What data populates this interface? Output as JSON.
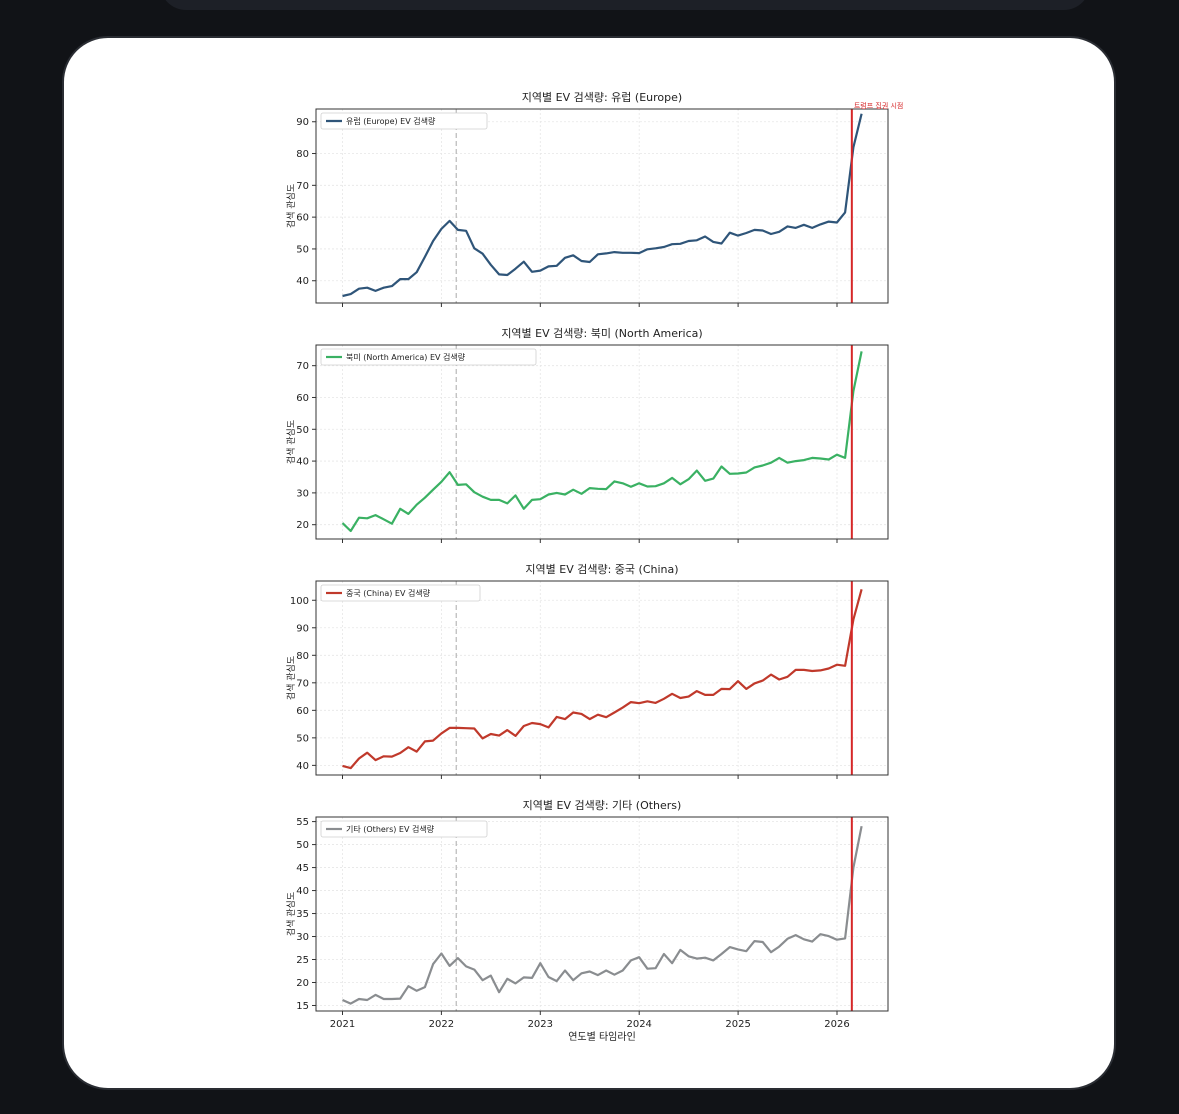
{
  "chart_data": [
    {
      "type": "line",
      "title": "지역별 EV 검색량: 유럽 (Europe)",
      "ylabel": "검색 관심도",
      "xlabel": "",
      "legend": "유럽 (Europe) EV 검색량",
      "legend_position": "top-left",
      "color": "#2f5579",
      "grid": true,
      "ylim": [
        33,
        94
      ],
      "yticks": [
        40,
        50,
        60,
        70,
        80,
        90
      ],
      "marker_label": "트럼프 집권 시점",
      "values": [
        35.2,
        35.8,
        37.5,
        37.8,
        36.8,
        37.8,
        38.3,
        40.5,
        40.5,
        42.7,
        47.5,
        52.5,
        56.3,
        58.8,
        56.0,
        55.7,
        50.2,
        48.5,
        45.0,
        42.0,
        41.8,
        43.8,
        46.0,
        42.8,
        43.2,
        44.5,
        44.7,
        47.2,
        48.0,
        46.2,
        45.9,
        48.3,
        48.6,
        49.0,
        48.8,
        48.8,
        48.7,
        49.9,
        50.2,
        50.6,
        51.5,
        51.6,
        52.5,
        52.7,
        53.9,
        52.2,
        51.7,
        55.1,
        54.2,
        55.0,
        56.0,
        55.8,
        54.7,
        55.4,
        57.1,
        56.6,
        57.6,
        56.6,
        57.7,
        58.6,
        58.3,
        61.5,
        82.0,
        92.5
      ]
    },
    {
      "type": "line",
      "title": "지역별 EV 검색량: 북미 (North America)",
      "ylabel": "검색 관심도",
      "xlabel": "",
      "legend": "북미 (North America) EV 검색량",
      "legend_position": "top-left",
      "color": "#3ab163",
      "grid": true,
      "ylim": [
        15.5,
        76.5
      ],
      "yticks": [
        20,
        30,
        40,
        50,
        60,
        70
      ],
      "values": [
        20.5,
        18.0,
        22.2,
        22.0,
        23.0,
        21.7,
        20.3,
        25.0,
        23.4,
        26.3,
        28.5,
        31.0,
        33.5,
        36.5,
        32.5,
        32.7,
        30.2,
        28.8,
        27.8,
        27.8,
        26.7,
        29.2,
        25.0,
        27.8,
        28.0,
        29.5,
        30.0,
        29.5,
        31.0,
        29.7,
        31.5,
        31.3,
        31.2,
        33.6,
        33.0,
        31.9,
        33.0,
        32.0,
        32.1,
        33.0,
        34.7,
        32.7,
        34.3,
        37.0,
        33.8,
        34.5,
        38.3,
        36.0,
        36.1,
        36.4,
        38.0,
        38.6,
        39.5,
        41.0,
        39.5,
        40.0,
        40.3,
        41.0,
        40.8,
        40.5,
        42.0,
        41.0,
        62.0,
        74.5
      ]
    },
    {
      "type": "line",
      "title": "지역별 EV 검색량: 중국 (China)",
      "ylabel": "검색 관심도",
      "xlabel": "",
      "legend": "중국 (China) EV 검색량",
      "legend_position": "top-left",
      "color": "#c0392b",
      "grid": true,
      "ylim": [
        36.5,
        107
      ],
      "yticks": [
        40,
        50,
        60,
        70,
        80,
        90,
        100
      ],
      "values": [
        39.8,
        39.0,
        42.5,
        44.6,
        41.9,
        43.3,
        43.2,
        44.5,
        46.6,
        45.0,
        48.7,
        49.0,
        51.6,
        53.6,
        53.6,
        53.5,
        53.4,
        49.8,
        51.4,
        50.8,
        52.8,
        50.7,
        54.3,
        55.4,
        55.0,
        53.8,
        57.6,
        56.8,
        59.2,
        58.7,
        56.8,
        58.4,
        57.5,
        59.2,
        61.0,
        63.0,
        62.6,
        63.3,
        62.7,
        64.2,
        66.0,
        64.5,
        65.0,
        67.0,
        65.6,
        65.6,
        67.8,
        67.7,
        70.6,
        67.8,
        69.8,
        70.8,
        73.0,
        71.2,
        72.2,
        74.7,
        74.7,
        74.3,
        74.5,
        75.2,
        76.6,
        76.2,
        93.0,
        104.0
      ]
    },
    {
      "type": "line",
      "title": "지역별 EV 검색량: 기타 (Others)",
      "ylabel": "검색 관심도",
      "xlabel": "연도별 타임라인",
      "legend": "기타 (Others) EV 검색량",
      "legend_position": "top-left",
      "color": "#8a8d90",
      "grid": true,
      "ylim": [
        13.8,
        56
      ],
      "yticks": [
        15,
        20,
        25,
        30,
        35,
        40,
        45,
        50,
        55
      ],
      "xticks": [
        "2021",
        "2022",
        "2023",
        "2024",
        "2025",
        "2026"
      ],
      "values": [
        16.2,
        15.4,
        16.4,
        16.2,
        17.3,
        16.4,
        16.4,
        16.5,
        19.2,
        18.2,
        19.0,
        24.0,
        26.3,
        23.6,
        25.3,
        23.5,
        22.8,
        20.5,
        21.5,
        17.9,
        20.8,
        19.8,
        21.1,
        21.0,
        24.2,
        21.2,
        20.3,
        22.6,
        20.5,
        22.0,
        22.4,
        21.6,
        22.6,
        21.7,
        22.6,
        24.8,
        25.5,
        23.0,
        23.1,
        26.2,
        24.2,
        27.1,
        25.7,
        25.2,
        25.4,
        24.8,
        26.2,
        27.7,
        27.2,
        26.8,
        29.0,
        28.8,
        26.6,
        27.8,
        29.5,
        30.3,
        29.4,
        28.9,
        30.5,
        30.1,
        29.3,
        29.6,
        45.0,
        54.0
      ]
    }
  ]
}
